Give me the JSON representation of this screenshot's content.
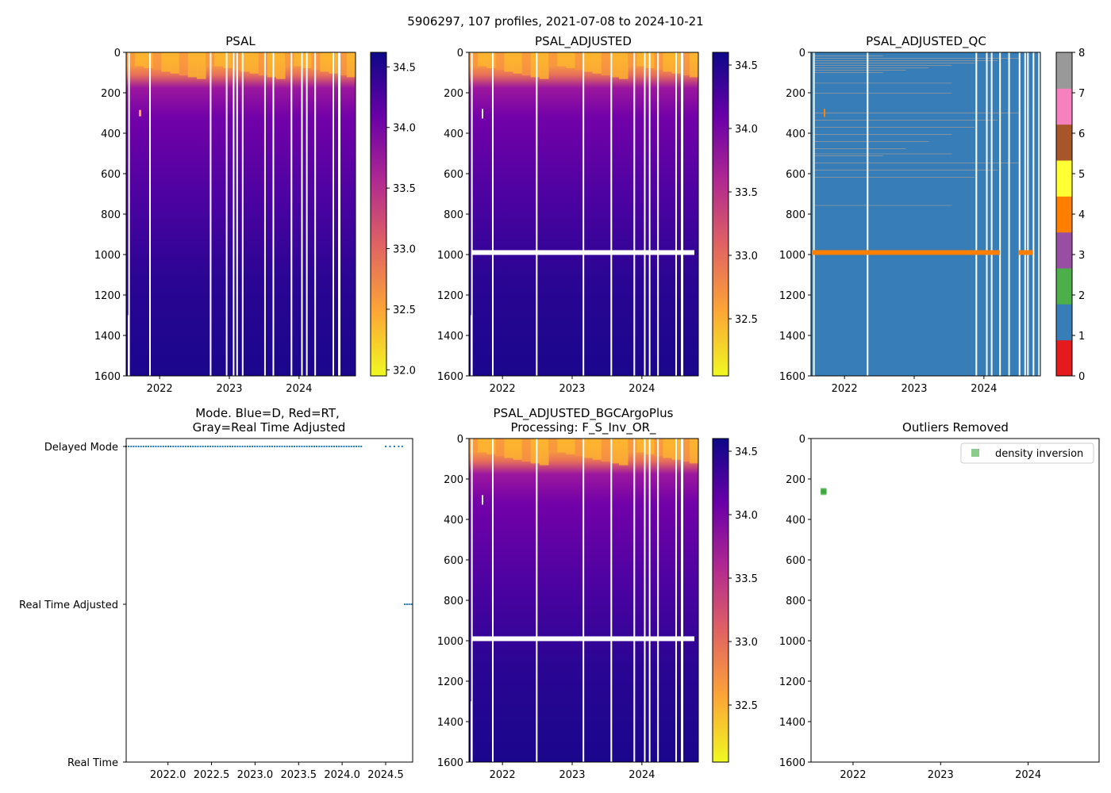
{
  "figure": {
    "suptitle": "5906297, 107 profiles, 2021-07-08 to 2024-10-21"
  },
  "colors": {
    "qc": [
      "#e41a1c",
      "#377eb8",
      "#4daf4a",
      "#984ea3",
      "#ff7f00",
      "#ffff33",
      "#a65628",
      "#f781bf",
      "#999999"
    ],
    "plasma": [
      "#f0f921",
      "#fca636",
      "#e16462",
      "#b12a90",
      "#6a00a8",
      "#0d0887"
    ],
    "mode_dot": "#1f77b4",
    "outlier": "#2ca02c"
  },
  "chart_data": [
    {
      "id": "psal",
      "type": "heatmap",
      "title": "PSAL",
      "xlim": [
        2021.52,
        2024.81
      ],
      "xticks": [
        2022,
        2023,
        2024
      ],
      "ylim": [
        1600,
        0
      ],
      "yticks": [
        0,
        200,
        400,
        600,
        800,
        1000,
        1200,
        1400,
        1600
      ],
      "colorbar": {
        "min": 31.95,
        "max": 34.62,
        "ticks": [
          "32.0",
          "32.5",
          "33.0",
          "33.5",
          "34.0",
          "34.5"
        ]
      },
      "gap_years": [
        2021.55,
        2021.85,
        2022.72,
        2022.95,
        2023.05,
        2023.1,
        2023.18,
        2023.5,
        2023.62,
        2023.88,
        2024.03,
        2024.1,
        2024.22,
        2024.48
      ],
      "adjusted_gap_depth": null
    },
    {
      "id": "psal_adj",
      "type": "heatmap",
      "title": "PSAL_ADJUSTED",
      "xlim": [
        2021.52,
        2024.81
      ],
      "xticks": [
        2022,
        2023,
        2024
      ],
      "ylim": [
        1600,
        0
      ],
      "yticks": [
        0,
        200,
        400,
        600,
        800,
        1000,
        1200,
        1400,
        1600
      ],
      "colorbar": {
        "min": 32.05,
        "max": 34.6,
        "ticks": [
          "32.5",
          "33.0",
          "33.5",
          "34.0",
          "34.5"
        ]
      },
      "gap_years": [
        2021.55,
        2021.85,
        2022.48,
        2023.15,
        2023.55,
        2023.88,
        2024.03,
        2024.1,
        2024.22,
        2024.48
      ],
      "adjusted_gap_depth": 990
    },
    {
      "id": "psal_qc",
      "type": "heatmap",
      "title": "PSAL_ADJUSTED_QC",
      "xlim": [
        2021.52,
        2024.81
      ],
      "xticks": [
        2022,
        2023,
        2024
      ],
      "ylim": [
        1600,
        0
      ],
      "yticks": [
        0,
        200,
        400,
        600,
        800,
        1000,
        1200,
        1400,
        1600
      ],
      "colorbar": {
        "min": 0,
        "max": 8,
        "ticks": [
          "0",
          "1",
          "2",
          "3",
          "4",
          "5",
          "6",
          "7",
          "8"
        ]
      },
      "gap_years": [
        2021.55,
        2022.32,
        2023.88,
        2024.03,
        2024.1,
        2024.22,
        2024.5
      ],
      "qc_band_depth": 990
    },
    {
      "id": "mode",
      "type": "scatter",
      "title": [
        "Mode. Blue=D, Red=RT,",
        "Gray=Real Time Adjusted"
      ],
      "xlim": [
        2021.52,
        2024.81
      ],
      "xticks": [
        "2022.0",
        "2022.5",
        "2023.0",
        "2023.5",
        "2024.0",
        "2024.5"
      ],
      "ycategories": [
        "Real Time",
        "Real Time Adjusted",
        "Delayed Mode"
      ],
      "delayed_range": [
        2021.52,
        2024.22
      ],
      "realtime_adjusted_range": [
        2024.72,
        2024.81
      ]
    },
    {
      "id": "psal_bgc",
      "type": "heatmap",
      "title": [
        "PSAL_ADJUSTED_BGCArgoPlus",
        "Processing: F_S_Inv_OR_"
      ],
      "xlim": [
        2021.52,
        2024.81
      ],
      "xticks": [
        2022,
        2023,
        2024
      ],
      "ylim": [
        1600,
        0
      ],
      "yticks": [
        0,
        200,
        400,
        600,
        800,
        1000,
        1200,
        1400,
        1600
      ],
      "colorbar": {
        "min": 32.05,
        "max": 34.6,
        "ticks": [
          "32.5",
          "33.0",
          "33.5",
          "34.0",
          "34.5"
        ]
      },
      "gap_years": [
        2021.55,
        2021.85,
        2022.48,
        2023.15,
        2023.55,
        2023.88,
        2024.03,
        2024.1,
        2024.22,
        2024.48
      ],
      "adjusted_gap_depth": 990
    },
    {
      "id": "outliers",
      "type": "scatter",
      "title": "Outliers Removed",
      "xlim": [
        2021.52,
        2024.81
      ],
      "xticks": [
        2022,
        2023,
        2024
      ],
      "ylim": [
        1600,
        0
      ],
      "yticks": [
        0,
        200,
        400,
        600,
        800,
        1000,
        1200,
        1400,
        1600
      ],
      "legend": {
        "label": "density inversion",
        "position": "top-right"
      },
      "points": [
        {
          "x": 2021.66,
          "y": 258
        },
        {
          "x": 2021.67,
          "y": 262
        },
        {
          "x": 2021.66,
          "y": 266
        }
      ]
    }
  ]
}
